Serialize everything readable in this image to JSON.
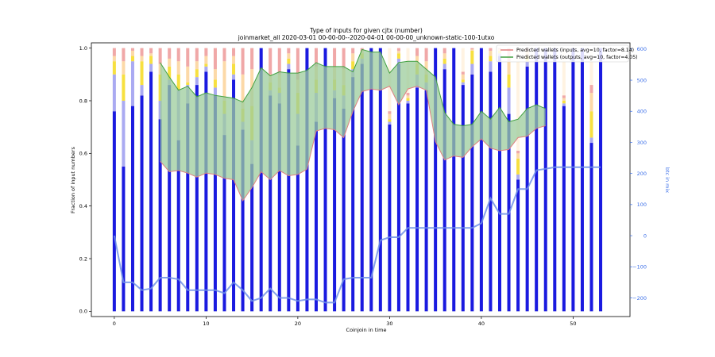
{
  "chart_data": {
    "type": "bar",
    "title": "Type of inputs for given cjtx (number)",
    "subtitle": "joinmarket_all 2020-03-01 00-00-00--2020-04-01 00-00-00_unknown-static-100-1utxo",
    "xlabel": "Coinjoin in time",
    "ylabel": "Fraction of input numbers",
    "ylabel_right": "btc in mix",
    "xlim": [
      -2.5,
      56.2
    ],
    "ylim": [
      -0.02,
      1.02
    ],
    "ylim_right": [
      -260,
      620
    ],
    "x_ticks": [
      0,
      10,
      20,
      30,
      40,
      50
    ],
    "y_ticks": [
      0.0,
      0.2,
      0.4,
      0.6,
      0.8,
      1.0
    ],
    "y_ticks_right": [
      -200,
      -100,
      0,
      100,
      200,
      300,
      400,
      500,
      600
    ],
    "legend_placement": "top-right",
    "colors": {
      "bar_main": "#1a1ae0",
      "bar_light": "#aaaaf2",
      "bar_yellow": "#f7e040",
      "bar_orange": "#fcd9a8",
      "bar_red": "#f0a8a8",
      "bar_top": "#fff3e2",
      "btc_line": "#7090e8",
      "inputs_line": "#e08080",
      "outputs_line": "#40a040",
      "fill": "#9ccc9c"
    },
    "bars": [
      [
        0.76,
        0.9,
        0.95,
        0.97,
        1.0
      ],
      [
        0.55,
        0.8,
        0.9,
        0.95,
        1.0
      ],
      [
        0.78,
        0.95,
        0.97,
        0.99,
        1.0
      ],
      [
        0.82,
        0.86,
        0.95,
        0.97,
        1.0
      ],
      [
        0.91,
        0.94,
        0.97,
        0.98,
        1.0
      ],
      [
        0.73,
        0.8,
        0.9,
        0.94,
        1.0
      ],
      [
        0.86,
        0.88,
        0.93,
        0.96,
        1.0
      ],
      [
        0.65,
        0.84,
        0.9,
        0.95,
        1.0
      ],
      [
        0.79,
        0.86,
        0.87,
        0.93,
        1.0
      ],
      [
        0.86,
        0.89,
        0.92,
        0.95,
        1.0
      ],
      [
        0.91,
        0.93,
        0.94,
        0.97,
        1.0
      ],
      [
        0.82,
        0.85,
        0.88,
        0.92,
        1.0
      ],
      [
        0.67,
        0.75,
        0.8,
        0.95,
        1.0
      ],
      [
        0.88,
        0.9,
        0.94,
        0.97,
        1.0
      ],
      [
        0.69,
        0.72,
        0.77,
        0.9,
        1.0
      ],
      [
        0.56,
        0.65,
        0.78,
        0.92,
        1.0
      ],
      [
        1.0,
        1.0,
        1.0,
        1.0,
        1.0
      ],
      [
        0.82,
        0.84,
        0.87,
        0.9,
        1.0
      ],
      [
        0.79,
        0.83,
        0.85,
        0.9,
        1.0
      ],
      [
        0.92,
        0.94,
        0.96,
        0.98,
        1.0
      ],
      [
        0.63,
        0.75,
        0.83,
        0.88,
        1.0
      ],
      [
        1.0,
        1.0,
        1.0,
        1.0,
        1.0
      ],
      [
        0.72,
        0.83,
        0.88,
        0.93,
        1.0
      ],
      [
        1.0,
        1.0,
        1.0,
        1.0,
        1.0
      ],
      [
        0.81,
        0.84,
        0.88,
        0.93,
        1.0
      ],
      [
        0.77,
        0.82,
        0.86,
        0.92,
        1.0
      ],
      [
        0.89,
        0.92,
        0.95,
        0.98,
        1.0
      ],
      [
        0.94,
        0.96,
        0.98,
        0.99,
        1.0
      ],
      [
        1.0,
        1.0,
        1.0,
        1.0,
        1.0
      ],
      [
        1.0,
        1.0,
        1.0,
        1.0,
        1.0
      ],
      [
        0.71,
        0.72,
        0.73,
        0.75,
        0.76
      ],
      [
        0.94,
        0.96,
        0.98,
        0.99,
        1.0
      ],
      [
        0.79,
        0.8,
        0.81,
        0.82,
        0.83
      ],
      [
        0.85,
        0.9,
        0.94,
        0.97,
        1.0
      ],
      [
        0.84,
        0.87,
        0.9,
        0.95,
        1.0
      ],
      [
        1.0,
        1.0,
        1.0,
        1.0,
        1.0
      ],
      [
        0.92,
        0.94,
        0.96,
        0.98,
        1.0
      ],
      [
        1.0,
        1.0,
        1.0,
        1.0,
        1.0
      ],
      [
        0.86,
        0.87,
        0.88,
        0.9,
        0.91
      ],
      [
        0.9,
        0.94,
        0.99,
        0.995,
        1.0
      ],
      [
        1.0,
        1.0,
        1.0,
        1.0,
        1.0
      ],
      [
        0.91,
        0.95,
        0.97,
        0.99,
        1.0
      ],
      [
        0.97,
        0.98,
        0.99,
        0.995,
        1.0
      ],
      [
        0.75,
        0.85,
        0.9,
        0.95,
        1.0
      ],
      [
        0.5,
        0.52,
        0.58,
        0.6,
        0.61
      ],
      [
        0.93,
        0.95,
        0.97,
        0.99,
        1.0
      ],
      [
        1.0,
        1.0,
        1.0,
        1.0,
        1.0
      ],
      [
        1.0,
        1.0,
        1.0,
        1.0,
        1.0
      ],
      [
        1.0,
        1.0,
        1.0,
        1.0,
        1.0
      ],
      [
        0.78,
        0.79,
        0.8,
        0.81,
        0.82
      ],
      [
        1.0,
        1.0,
        1.0,
        1.0,
        1.0
      ],
      [
        1.0,
        1.0,
        1.0,
        1.0,
        1.0
      ],
      [
        0.64,
        0.66,
        0.76,
        0.83,
        0.86
      ],
      [
        1.0,
        1.0,
        1.0,
        1.0,
        1.0
      ]
    ],
    "btc_in_mix": [
      0,
      -150,
      -150,
      -175,
      -170,
      -135,
      -135,
      -140,
      -175,
      -175,
      -175,
      -175,
      -185,
      -150,
      -175,
      -210,
      -200,
      -170,
      -200,
      -200,
      -210,
      -205,
      -205,
      -215,
      -215,
      -140,
      -135,
      -135,
      -135,
      -15,
      -5,
      -5,
      25,
      25,
      25,
      25,
      25,
      25,
      25,
      25,
      40,
      120,
      70,
      70,
      150,
      150,
      210,
      215,
      220,
      220,
      220,
      220,
      220,
      220
    ],
    "series": [
      {
        "name": "Predicted wallets (inputs, avg=10, factor=8.14)",
        "x": [
          5,
          6,
          7,
          8,
          9,
          10,
          11,
          12,
          13,
          14,
          15,
          16,
          17,
          18,
          19,
          20,
          21,
          22,
          23,
          24,
          25,
          26,
          27,
          28,
          29,
          30,
          31,
          32,
          33,
          34,
          35,
          36,
          37,
          38,
          39,
          40,
          41,
          42,
          43,
          44,
          45,
          46,
          47
        ],
        "values": [
          0.57,
          0.53,
          0.535,
          0.525,
          0.51,
          0.525,
          0.52,
          0.505,
          0.5,
          0.42,
          0.47,
          0.53,
          0.5,
          0.535,
          0.515,
          0.52,
          0.54,
          0.685,
          0.695,
          0.69,
          0.66,
          0.76,
          0.835,
          0.845,
          0.84,
          0.855,
          0.785,
          0.845,
          0.855,
          0.84,
          0.645,
          0.575,
          0.59,
          0.585,
          0.625,
          0.655,
          0.62,
          0.61,
          0.615,
          0.66,
          0.665,
          0.695,
          0.705
        ]
      },
      {
        "name": "Predicted wallets (outputs, avg=10, factor=4.05)",
        "x": [
          5,
          6,
          7,
          8,
          9,
          10,
          11,
          12,
          13,
          14,
          15,
          16,
          17,
          18,
          19,
          20,
          21,
          22,
          23,
          24,
          25,
          26,
          27,
          28,
          29,
          30,
          31,
          32,
          33,
          34,
          35,
          36,
          37,
          38,
          39,
          40,
          41,
          42,
          43,
          44,
          45,
          46,
          47
        ],
        "values": [
          0.945,
          0.89,
          0.84,
          0.855,
          0.815,
          0.83,
          0.82,
          0.815,
          0.81,
          0.795,
          0.85,
          0.925,
          0.895,
          0.91,
          0.905,
          0.905,
          0.915,
          0.945,
          0.93,
          0.93,
          0.93,
          0.91,
          0.995,
          0.985,
          0.985,
          0.905,
          0.945,
          0.95,
          0.95,
          0.92,
          0.89,
          0.755,
          0.71,
          0.705,
          0.71,
          0.76,
          0.73,
          0.775,
          0.72,
          0.73,
          0.77,
          0.785,
          0.77
        ]
      }
    ]
  }
}
